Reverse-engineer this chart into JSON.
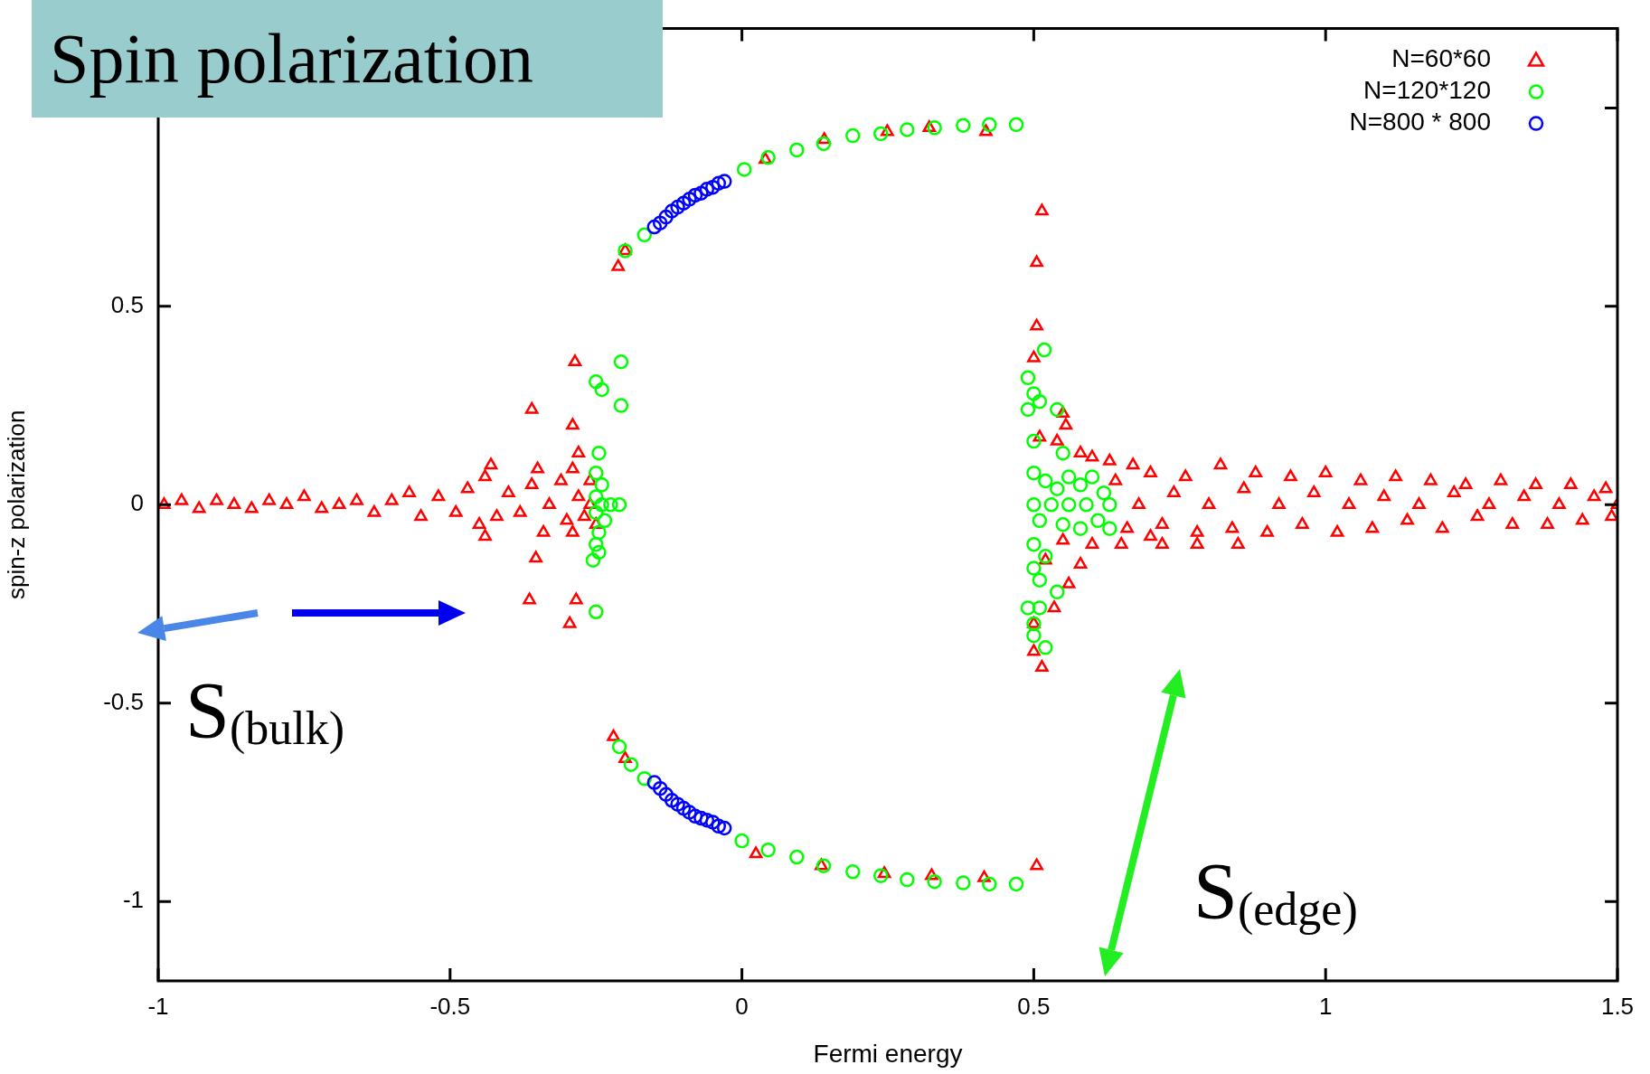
{
  "chart_data": {
    "type": "scatter",
    "title": "Spin polarization",
    "xlabel": "Fermi energy",
    "ylabel": "spin-z polarization",
    "xlim": [
      -1,
      1.5
    ],
    "xticks": [
      -1,
      -0.5,
      0,
      0.5,
      1,
      1.5
    ],
    "ylim": [
      -1.2,
      1.2
    ],
    "yticks": [
      -1,
      -0.5,
      0,
      0.5,
      {
        "value": 1,
        "label": null
      }
    ],
    "legend": "top right",
    "annotations": [
      "S$_{(bulk)}$",
      "S$_{(edge)}$"
    ],
    "series": [
      {
        "name": "N=60*60",
        "color": "#ff0000",
        "marker": "triangle",
        "x": [
          -0.99,
          -0.96,
          -0.93,
          -0.9,
          -0.87,
          -0.84,
          -0.81,
          -0.78,
          -0.75,
          -0.72,
          -0.69,
          -0.66,
          -0.63,
          -0.6,
          -0.57,
          -0.55,
          -0.52,
          -0.49,
          -0.47,
          -0.45,
          -0.44,
          -0.43,
          -0.42,
          -0.4,
          -0.38,
          -0.36,
          -0.35,
          -0.34,
          -0.33,
          -0.31,
          -0.3,
          -0.28,
          -0.27,
          -0.26,
          -0.36,
          -0.286,
          -0.29,
          -0.28,
          -0.29,
          -0.353,
          -0.364,
          -0.284,
          -0.295,
          -0.44,
          -0.29,
          -0.25,
          -0.26,
          -0.212,
          -0.2,
          0.04,
          0.141,
          0.249,
          0.321,
          0.418,
          -0.22,
          -0.2,
          0.024,
          0.136,
          0.244,
          0.325,
          0.415,
          0.505,
          0.514,
          0.505,
          0.505,
          0.5,
          0.55,
          0.555,
          0.54,
          0.51,
          0.58,
          0.6,
          0.63,
          0.67,
          0.514,
          0.5,
          0.5,
          0.535,
          0.56,
          0.58,
          0.52,
          0.55,
          0.6,
          0.65,
          0.7,
          0.72,
          0.78,
          0.85,
          0.64,
          0.66,
          0.68,
          0.7,
          0.72,
          0.74,
          0.76,
          0.78,
          0.8,
          0.82,
          0.84,
          0.86,
          0.88,
          0.9,
          0.92,
          0.94,
          0.96,
          0.98,
          1.0,
          1.02,
          1.04,
          1.06,
          1.08,
          1.1,
          1.12,
          1.14,
          1.16,
          1.18,
          1.2,
          1.22,
          1.24,
          1.26,
          1.28,
          1.3,
          1.32,
          1.34,
          1.36,
          1.38,
          1.4,
          1.42,
          1.44,
          1.46,
          1.48,
          1.49,
          1.5
        ],
        "values": [
          0.0,
          0.01,
          -0.01,
          0.01,
          0.0,
          -0.01,
          0.01,
          0.0,
          0.02,
          -0.01,
          0.0,
          0.01,
          -0.02,
          0.01,
          0.03,
          -0.03,
          0.02,
          -0.02,
          0.04,
          -0.05,
          0.07,
          0.1,
          -0.03,
          0.03,
          -0.02,
          0.05,
          0.09,
          -0.07,
          0.0,
          0.06,
          -0.04,
          0.02,
          -0.03,
          0.0,
          0.24,
          0.36,
          0.2,
          0.13,
          0.09,
          -0.135,
          -0.24,
          -0.24,
          -0.3,
          -0.08,
          -0.07,
          -0.05,
          0.06,
          0.6,
          0.64,
          0.87,
          0.92,
          0.94,
          0.95,
          0.94,
          -0.585,
          -0.64,
          -0.88,
          -0.91,
          -0.93,
          -0.935,
          -0.94,
          -0.91,
          0.74,
          0.61,
          0.45,
          0.37,
          0.23,
          0.2,
          0.16,
          0.17,
          0.13,
          0.12,
          0.11,
          0.1,
          -0.41,
          -0.37,
          -0.3,
          -0.26,
          -0.2,
          -0.15,
          -0.14,
          -0.09,
          -0.1,
          -0.1,
          -0.08,
          -0.1,
          -0.1,
          -0.1,
          0.06,
          -0.06,
          0.0,
          0.08,
          -0.05,
          0.03,
          0.07,
          -0.07,
          0.0,
          0.1,
          -0.06,
          0.04,
          0.08,
          -0.07,
          0.0,
          0.07,
          -0.05,
          0.03,
          0.08,
          -0.07,
          0.0,
          0.06,
          -0.06,
          0.02,
          0.07,
          -0.04,
          0.0,
          0.06,
          -0.06,
          0.03,
          0.05,
          -0.03,
          0.0,
          0.06,
          -0.05,
          0.02,
          0.05,
          -0.05,
          0.0,
          0.05,
          -0.04,
          0.02,
          0.04,
          -0.03,
          0.0
        ]
      },
      {
        "name": "N=120*120",
        "color": "#00ff00",
        "marker": "circle",
        "x": [
          -0.2,
          -0.167,
          -0.144,
          0.004,
          0.045,
          0.094,
          0.14,
          0.19,
          0.238,
          0.283,
          0.33,
          0.379,
          0.424,
          0.47,
          -0.21,
          -0.19,
          -0.167,
          0.0,
          0.045,
          0.094,
          0.14,
          0.19,
          0.238,
          0.283,
          0.33,
          0.379,
          0.424,
          0.47,
          -0.207,
          -0.25,
          -0.24,
          -0.207,
          -0.245,
          -0.25,
          -0.24,
          -0.25,
          -0.24,
          -0.225,
          -0.21,
          -0.25,
          -0.235,
          -0.245,
          -0.25,
          -0.245,
          -0.255,
          -0.25,
          0.518,
          0.49,
          0.5,
          0.49,
          0.51,
          0.54,
          0.5,
          0.55,
          0.5,
          0.52,
          0.54,
          0.56,
          0.58,
          0.6,
          0.62,
          0.5,
          0.53,
          0.56,
          0.59,
          0.63,
          0.51,
          0.55,
          0.58,
          0.61,
          0.63,
          0.5,
          0.52,
          0.5,
          0.51,
          0.54,
          0.49,
          0.51,
          0.5,
          0.5,
          0.52
        ],
        "values": [
          0.64,
          0.68,
          null,
          0.845,
          0.875,
          0.894,
          0.91,
          0.93,
          0.935,
          0.945,
          0.95,
          0.956,
          0.958,
          0.958,
          -0.61,
          -0.655,
          -0.69,
          -0.847,
          -0.87,
          -0.888,
          -0.91,
          -0.925,
          -0.935,
          -0.945,
          -0.95,
          -0.953,
          -0.956,
          -0.956,
          0.36,
          0.31,
          0.29,
          0.25,
          0.13,
          0.08,
          0.05,
          0.02,
          0.0,
          0.0,
          0.0,
          -0.02,
          -0.04,
          -0.07,
          -0.1,
          -0.12,
          -0.14,
          -0.27,
          0.39,
          0.32,
          0.28,
          0.24,
          0.26,
          0.24,
          0.16,
          0.13,
          0.08,
          0.06,
          0.04,
          0.07,
          0.05,
          0.07,
          0.03,
          0.0,
          0.0,
          0.0,
          0.0,
          0.0,
          -0.04,
          -0.05,
          -0.06,
          -0.04,
          -0.06,
          -0.1,
          -0.13,
          -0.16,
          -0.19,
          -0.22,
          -0.26,
          -0.26,
          -0.3,
          -0.33,
          -0.36
        ]
      },
      {
        "name": "N=800 * 800",
        "color": "#0000ff",
        "marker": "circle",
        "x": [
          -0.15,
          -0.14,
          -0.13,
          -0.12,
          -0.11,
          -0.1,
          -0.09,
          -0.08,
          -0.07,
          -0.06,
          -0.05,
          -0.04,
          -0.03,
          -0.15,
          -0.14,
          -0.13,
          -0.12,
          -0.11,
          -0.1,
          -0.09,
          -0.08,
          -0.07,
          -0.06,
          -0.05,
          -0.04,
          -0.03
        ],
        "values": [
          0.7,
          0.71,
          0.725,
          0.74,
          0.75,
          0.76,
          0.77,
          0.78,
          0.785,
          0.795,
          0.8,
          0.81,
          0.815,
          -0.7,
          -0.715,
          -0.73,
          -0.745,
          -0.755,
          -0.765,
          -0.775,
          -0.785,
          -0.79,
          -0.795,
          -0.8,
          -0.81,
          -0.815
        ]
      }
    ]
  }
}
